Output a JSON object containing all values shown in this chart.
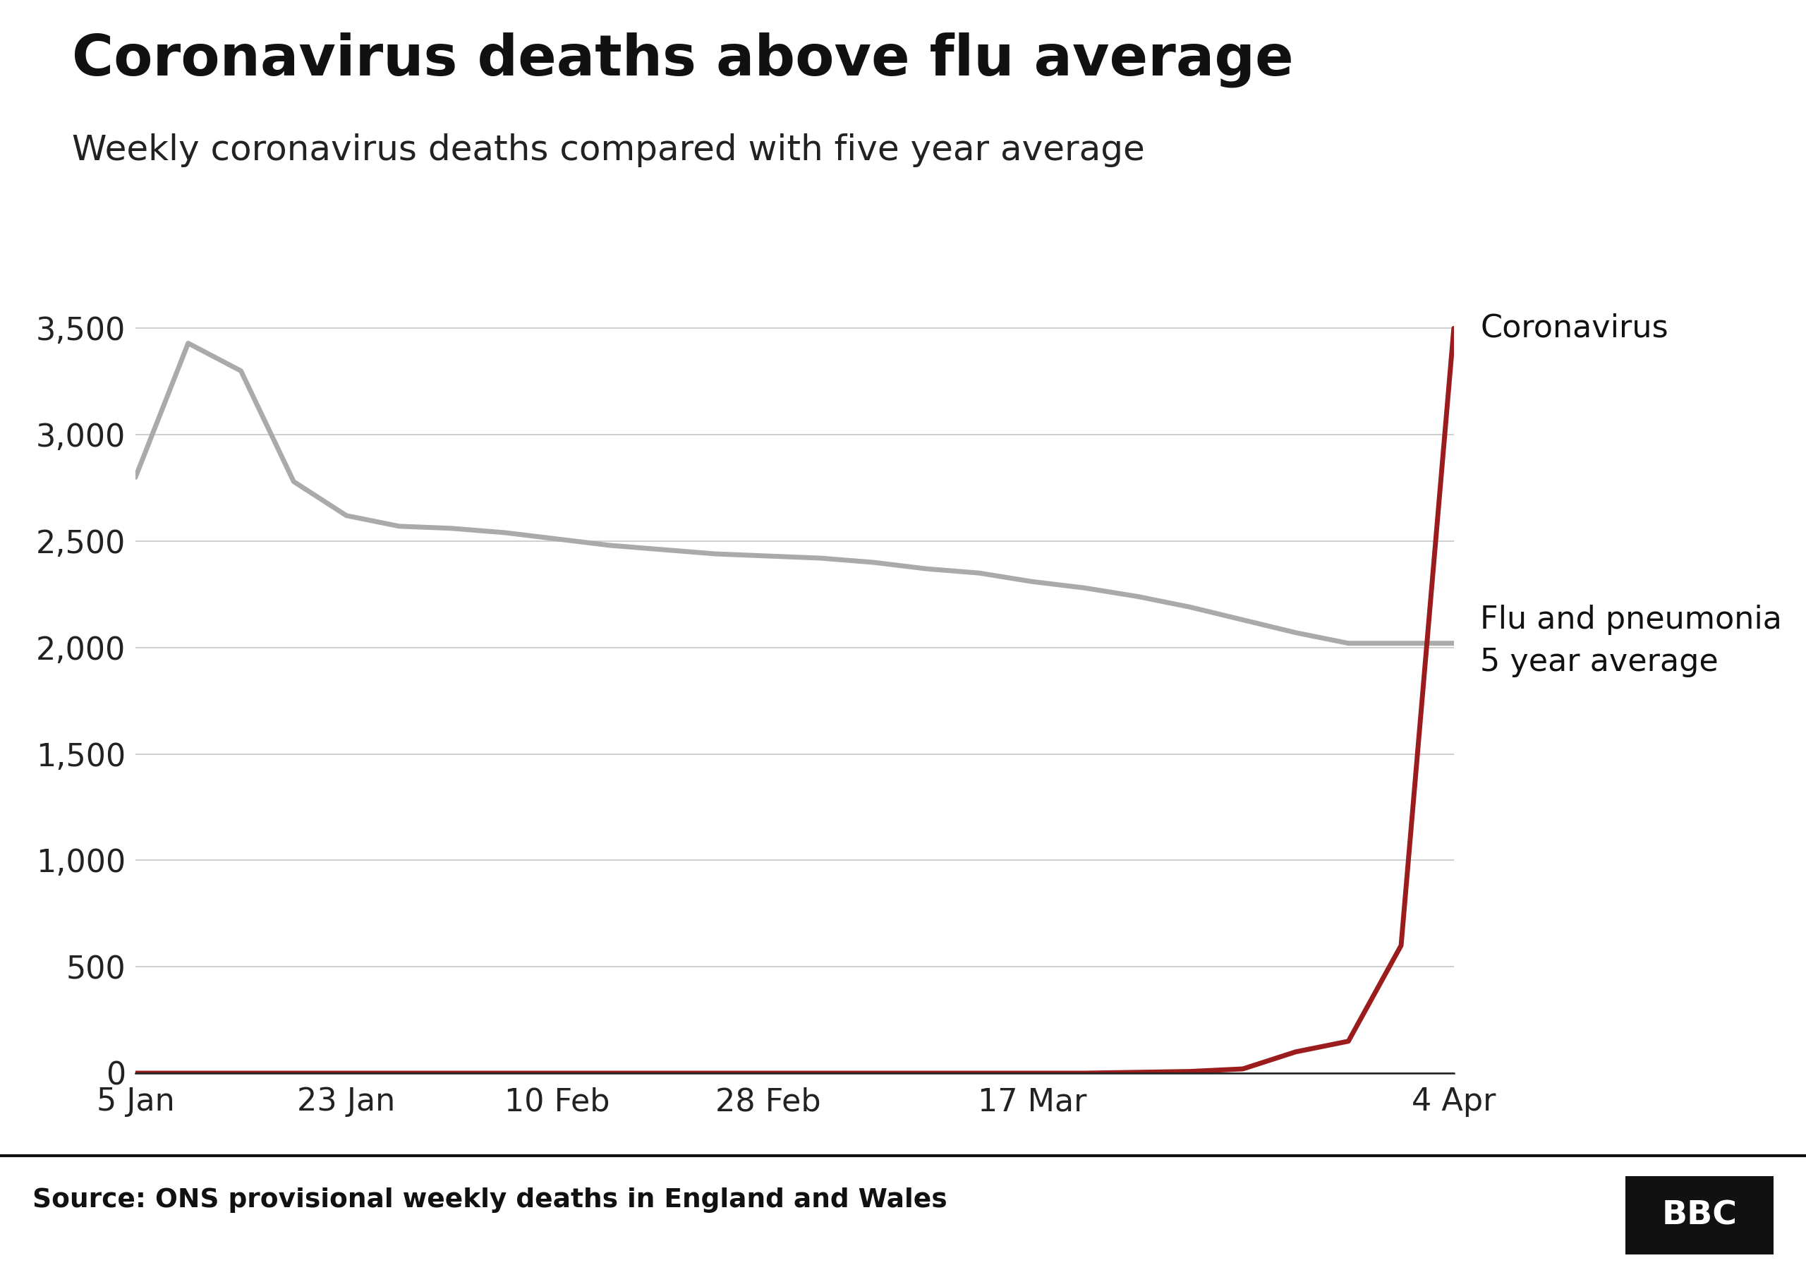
{
  "title": "Coronavirus deaths above flu average",
  "subtitle": "Weekly coronavirus deaths compared with five year average",
  "source_text": "Source: ONS provisional weekly deaths in England and Wales",
  "bbc_text": "BBC",
  "x_tick_labels": [
    "5 Jan",
    "23 Jan",
    "10 Feb",
    "28 Feb",
    "17 Mar",
    "4 Apr"
  ],
  "ylim": [
    0,
    3700
  ],
  "yticks": [
    0,
    500,
    1000,
    1500,
    2000,
    2500,
    3000,
    3500
  ],
  "flu_x": [
    0,
    1,
    2,
    3,
    4,
    5,
    6,
    7,
    8,
    9,
    10,
    11,
    12,
    13,
    14,
    15,
    16,
    17,
    18,
    19,
    20,
    21,
    22,
    23,
    24,
    25
  ],
  "flu_y": [
    2800,
    3430,
    3300,
    2780,
    2620,
    2570,
    2560,
    2540,
    2510,
    2480,
    2460,
    2440,
    2430,
    2420,
    2400,
    2370,
    2350,
    2310,
    2280,
    2240,
    2190,
    2130,
    2070,
    2020,
    2020,
    2020
  ],
  "covid_x": [
    0,
    1,
    2,
    3,
    4,
    5,
    6,
    7,
    8,
    9,
    10,
    11,
    12,
    13,
    14,
    15,
    16,
    17,
    18,
    19,
    20,
    21,
    22,
    23,
    24,
    25
  ],
  "covid_y": [
    0,
    0,
    0,
    0,
    0,
    0,
    0,
    0,
    0,
    0,
    0,
    0,
    0,
    0,
    0,
    0,
    0,
    0,
    0,
    4,
    8,
    20,
    100,
    150,
    600,
    3500
  ],
  "flu_color": "#aaaaaa",
  "covid_color": "#9b1c1c",
  "background_color": "#ffffff",
  "title_fontsize": 58,
  "subtitle_fontsize": 36,
  "tick_fontsize": 32,
  "annotation_fontsize": 32,
  "source_fontsize": 27,
  "line_width": 5.0,
  "annotation_corona": "Coronavirus",
  "annotation_flu": "Flu and pneumonia\n5 year average",
  "xtick_positions": [
    0,
    4,
    8,
    12,
    17,
    25
  ],
  "xlim": [
    0,
    25
  ]
}
